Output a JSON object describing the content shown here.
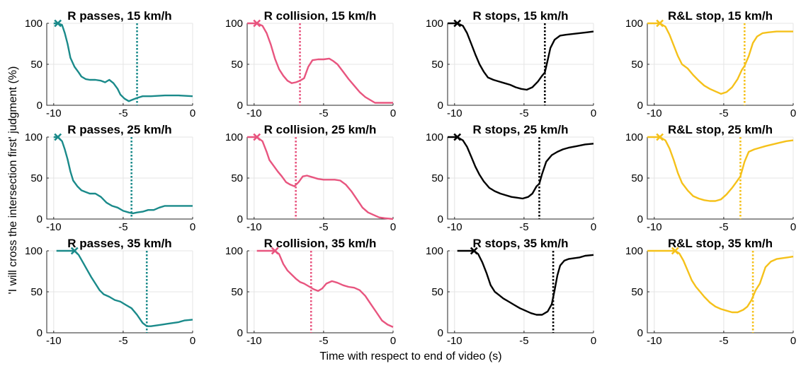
{
  "figure": {
    "ylabel": "'I will cross the intersection first' judgment (%)",
    "xlabel": "Time with respect to end of video (s)"
  },
  "chart_data": [
    {
      "type": "line",
      "title": "R passes, 15 km/h",
      "color": "#1a8a8a",
      "xlim": [
        -10.5,
        0
      ],
      "ylim": [
        0,
        100
      ],
      "xticks": [
        -10,
        -5,
        0
      ],
      "yticks": [
        0,
        50,
        100
      ],
      "grid": true,
      "start_marker": {
        "x": -9.7,
        "y": 100
      },
      "vline": -4.0,
      "x": [
        -10,
        -9.7,
        -9.4,
        -9.2,
        -9.0,
        -8.8,
        -8.5,
        -8.2,
        -8.0,
        -7.7,
        -7.4,
        -7.0,
        -6.6,
        -6.3,
        -6.0,
        -5.7,
        -5.4,
        -5.2,
        -4.9,
        -4.6,
        -4.3,
        -4.0,
        -3.6,
        -3.0,
        -2.0,
        -1.0,
        0
      ],
      "y": [
        100,
        100,
        98,
        88,
        75,
        58,
        47,
        40,
        35,
        32,
        31,
        31,
        30,
        28,
        31,
        27,
        20,
        13,
        8,
        5,
        7,
        9,
        11,
        11,
        12,
        12,
        11
      ]
    },
    {
      "type": "line",
      "title": "R collision, 15 km/h",
      "color": "#e8557f",
      "xlim": [
        -10.5,
        0
      ],
      "ylim": [
        0,
        100
      ],
      "xticks": [
        -10,
        -5,
        0
      ],
      "yticks": [
        0,
        50,
        100
      ],
      "grid": true,
      "start_marker": {
        "x": -9.8,
        "y": 100
      },
      "vline": -6.7,
      "x": [
        -10.5,
        -9.8,
        -9.4,
        -9.1,
        -8.8,
        -8.5,
        -8.2,
        -7.9,
        -7.6,
        -7.3,
        -7.0,
        -6.7,
        -6.4,
        -6.1,
        -5.8,
        -5.4,
        -5.0,
        -4.6,
        -4.3,
        -4.0,
        -3.6,
        -3.2,
        -2.8,
        -2.4,
        -2.0,
        -1.6,
        -1.3,
        -1.0,
        0
      ],
      "y": [
        100,
        100,
        97,
        88,
        74,
        57,
        44,
        36,
        30,
        27,
        28,
        30,
        33,
        47,
        55,
        56,
        56,
        57,
        54,
        50,
        41,
        32,
        24,
        16,
        10,
        6,
        3,
        3,
        3
      ]
    },
    {
      "type": "line",
      "title": "R stops, 15 km/h",
      "color": "#000000",
      "xlim": [
        -10.5,
        0
      ],
      "ylim": [
        0,
        100
      ],
      "xticks": [
        -10,
        -5,
        0
      ],
      "yticks": [
        0,
        50,
        100
      ],
      "grid": true,
      "start_marker": {
        "x": -9.8,
        "y": 100
      },
      "vline": -3.5,
      "x": [
        -10.5,
        -9.8,
        -9.4,
        -9.1,
        -8.8,
        -8.5,
        -8.2,
        -7.9,
        -7.6,
        -7.2,
        -6.8,
        -6.4,
        -6.0,
        -5.6,
        -5.2,
        -4.8,
        -4.4,
        -4.0,
        -3.7,
        -3.5,
        -3.3,
        -3.1,
        -2.8,
        -2.4,
        -2.0,
        -1.5,
        -1.0,
        -0.5,
        0
      ],
      "y": [
        100,
        100,
        97,
        88,
        75,
        62,
        50,
        41,
        34,
        31,
        29,
        27,
        25,
        22,
        20,
        19,
        22,
        29,
        36,
        40,
        55,
        70,
        80,
        85,
        86,
        87,
        88,
        89,
        90
      ]
    },
    {
      "type": "line",
      "title": "R&L stop, 15 km/h",
      "color": "#f5c11a",
      "xlim": [
        -10.5,
        0
      ],
      "ylim": [
        0,
        100
      ],
      "xticks": [
        -10,
        -5,
        0
      ],
      "yticks": [
        0,
        50,
        100
      ],
      "grid": true,
      "start_marker": {
        "x": -9.6,
        "y": 100
      },
      "vline": -3.5,
      "x": [
        -10.5,
        -9.6,
        -9.2,
        -8.9,
        -8.6,
        -8.3,
        -8.0,
        -7.6,
        -7.2,
        -6.8,
        -6.4,
        -6.0,
        -5.6,
        -5.2,
        -4.8,
        -4.4,
        -4.0,
        -3.7,
        -3.5,
        -3.2,
        -2.9,
        -2.6,
        -2.2,
        -1.8,
        -1.2,
        -0.6,
        0
      ],
      "y": [
        100,
        100,
        96,
        86,
        73,
        60,
        50,
        45,
        37,
        30,
        24,
        20,
        17,
        14,
        16,
        22,
        32,
        43,
        48,
        60,
        76,
        84,
        88,
        89,
        90,
        90,
        90
      ]
    },
    {
      "type": "line",
      "title": "R passes, 25 km/h",
      "color": "#1a8a8a",
      "xlim": [
        -10.5,
        0
      ],
      "ylim": [
        0,
        100
      ],
      "xticks": [
        -10,
        -5,
        0
      ],
      "yticks": [
        0,
        50,
        100
      ],
      "grid": true,
      "start_marker": {
        "x": -9.7,
        "y": 100
      },
      "vline": -4.4,
      "x": [
        -10,
        -9.7,
        -9.4,
        -9.2,
        -9.0,
        -8.8,
        -8.6,
        -8.3,
        -8.0,
        -7.7,
        -7.4,
        -7.0,
        -6.6,
        -6.2,
        -5.8,
        -5.4,
        -5.0,
        -4.6,
        -4.3,
        -4.0,
        -3.6,
        -3.2,
        -2.8,
        -2.4,
        -2.0,
        -1.4,
        -0.8,
        0
      ],
      "y": [
        100,
        100,
        95,
        85,
        73,
        58,
        47,
        40,
        35,
        33,
        31,
        31,
        27,
        20,
        16,
        14,
        10,
        8,
        7,
        8,
        9,
        11,
        11,
        14,
        16,
        16,
        16,
        16
      ]
    },
    {
      "type": "line",
      "title": "R collision, 25 km/h",
      "color": "#e8557f",
      "xlim": [
        -10.5,
        0
      ],
      "ylim": [
        0,
        100
      ],
      "xticks": [
        -10,
        -5,
        0
      ],
      "yticks": [
        0,
        50,
        100
      ],
      "grid": true,
      "start_marker": {
        "x": -9.8,
        "y": 100
      },
      "vline": -7.0,
      "x": [
        -10.5,
        -9.8,
        -9.4,
        -9.1,
        -8.9,
        -8.6,
        -8.3,
        -8.0,
        -7.7,
        -7.4,
        -7.1,
        -6.8,
        -6.5,
        -6.2,
        -5.8,
        -5.4,
        -5.0,
        -4.6,
        -4.2,
        -3.8,
        -3.4,
        -3.0,
        -2.6,
        -2.2,
        -1.8,
        -1.4,
        -1.0,
        -0.6,
        0
      ],
      "y": [
        100,
        100,
        95,
        82,
        72,
        65,
        58,
        52,
        45,
        42,
        40,
        45,
        52,
        53,
        51,
        49,
        48,
        48,
        48,
        47,
        42,
        34,
        24,
        14,
        8,
        5,
        2,
        1,
        0
      ]
    },
    {
      "type": "line",
      "title": "R stops, 25 km/h",
      "color": "#000000",
      "xlim": [
        -10.5,
        0
      ],
      "ylim": [
        0,
        100
      ],
      "xticks": [
        -10,
        -5,
        0
      ],
      "yticks": [
        0,
        50,
        100
      ],
      "grid": true,
      "start_marker": {
        "x": -9.8,
        "y": 100
      },
      "vline": -3.9,
      "x": [
        -10.5,
        -9.8,
        -9.4,
        -9.1,
        -8.8,
        -8.5,
        -8.2,
        -7.9,
        -7.5,
        -7.1,
        -6.7,
        -6.3,
        -5.9,
        -5.5,
        -5.1,
        -4.7,
        -4.4,
        -4.1,
        -3.9,
        -3.7,
        -3.4,
        -3.0,
        -2.6,
        -2.2,
        -1.8,
        -1.2,
        -0.6,
        0
      ],
      "y": [
        100,
        100,
        96,
        88,
        76,
        64,
        54,
        46,
        38,
        34,
        31,
        29,
        27,
        26,
        25,
        27,
        31,
        40,
        43,
        55,
        70,
        78,
        82,
        85,
        87,
        89,
        91,
        92
      ]
    },
    {
      "type": "line",
      "title": "R&L stop, 25 km/h",
      "color": "#f5c11a",
      "xlim": [
        -10.5,
        0
      ],
      "ylim": [
        0,
        100
      ],
      "xticks": [
        -10,
        -5,
        0
      ],
      "yticks": [
        0,
        50,
        100
      ],
      "grid": true,
      "start_marker": {
        "x": -9.6,
        "y": 100
      },
      "vline": -3.8,
      "x": [
        -10.5,
        -9.6,
        -9.2,
        -8.9,
        -8.6,
        -8.3,
        -8.0,
        -7.6,
        -7.2,
        -6.8,
        -6.4,
        -6.0,
        -5.6,
        -5.2,
        -4.8,
        -4.4,
        -4.1,
        -3.8,
        -3.5,
        -3.2,
        -2.8,
        -2.4,
        -2.0,
        -1.5,
        -1.0,
        -0.5,
        0
      ],
      "y": [
        100,
        100,
        96,
        86,
        72,
        56,
        44,
        35,
        28,
        25,
        23,
        22,
        22,
        24,
        30,
        38,
        45,
        52,
        70,
        82,
        85,
        87,
        89,
        91,
        93,
        95,
        96
      ]
    },
    {
      "type": "line",
      "title": "R passes, 35 km/h",
      "color": "#1a8a8a",
      "xlim": [
        -10.5,
        0
      ],
      "ylim": [
        0,
        100
      ],
      "xticks": [
        -10,
        -5,
        0
      ],
      "yticks": [
        0,
        50,
        100
      ],
      "grid": true,
      "start_marker": {
        "x": -8.5,
        "y": 100
      },
      "vline": -3.3,
      "x": [
        -9.8,
        -8.5,
        -8.2,
        -7.9,
        -7.6,
        -7.3,
        -7.0,
        -6.7,
        -6.4,
        -6.0,
        -5.6,
        -5.2,
        -4.8,
        -4.4,
        -4.0,
        -3.6,
        -3.3,
        -3.0,
        -2.6,
        -2.2,
        -1.8,
        -1.4,
        -1.0,
        -0.6,
        0
      ],
      "y": [
        100,
        100,
        95,
        86,
        77,
        68,
        60,
        52,
        47,
        44,
        40,
        38,
        34,
        30,
        22,
        12,
        8,
        8,
        9,
        10,
        11,
        12,
        13,
        15,
        16
      ]
    },
    {
      "type": "line",
      "title": "R collision, 35 km/h",
      "color": "#e8557f",
      "xlim": [
        -10.5,
        0
      ],
      "ylim": [
        0,
        100
      ],
      "xticks": [
        -10,
        -5,
        0
      ],
      "yticks": [
        0,
        50,
        100
      ],
      "grid": true,
      "start_marker": {
        "x": -8.5,
        "y": 100
      },
      "vline": -5.9,
      "x": [
        -9.8,
        -8.5,
        -8.2,
        -7.9,
        -7.6,
        -7.3,
        -7.0,
        -6.7,
        -6.4,
        -6.0,
        -5.7,
        -5.4,
        -5.1,
        -4.8,
        -4.4,
        -4.0,
        -3.6,
        -3.2,
        -2.8,
        -2.4,
        -2.0,
        -1.6,
        -1.2,
        -0.8,
        -0.4,
        0
      ],
      "y": [
        100,
        100,
        96,
        84,
        76,
        71,
        66,
        62,
        60,
        56,
        53,
        51,
        54,
        60,
        63,
        61,
        58,
        56,
        55,
        52,
        45,
        35,
        25,
        15,
        10,
        7
      ]
    },
    {
      "type": "line",
      "title": "R stops, 35 km/h",
      "color": "#000000",
      "xlim": [
        -10.5,
        0
      ],
      "ylim": [
        0,
        100
      ],
      "xticks": [
        -10,
        -5,
        0
      ],
      "yticks": [
        0,
        50,
        100
      ],
      "grid": true,
      "start_marker": {
        "x": -8.6,
        "y": 100
      },
      "vline": -2.9,
      "x": [
        -9.8,
        -8.6,
        -8.3,
        -8.0,
        -7.7,
        -7.4,
        -7.1,
        -6.8,
        -6.5,
        -6.1,
        -5.7,
        -5.3,
        -4.9,
        -4.5,
        -4.1,
        -3.7,
        -3.3,
        -3.0,
        -2.8,
        -2.6,
        -2.4,
        -2.1,
        -1.8,
        -1.4,
        -1.0,
        -0.6,
        0
      ],
      "y": [
        100,
        100,
        96,
        86,
        73,
        58,
        50,
        46,
        42,
        38,
        34,
        30,
        27,
        24,
        22,
        22,
        26,
        35,
        52,
        70,
        82,
        88,
        90,
        91,
        92,
        94,
        95
      ]
    },
    {
      "type": "line",
      "title": "R&L stop, 35 km/h",
      "color": "#f5c11a",
      "xlim": [
        -10.5,
        0
      ],
      "ylim": [
        0,
        100
      ],
      "xticks": [
        -10,
        -5,
        0
      ],
      "yticks": [
        0,
        50,
        100
      ],
      "grid": true,
      "start_marker": {
        "x": -8.5,
        "y": 100
      },
      "vline": -2.9,
      "x": [
        -10.5,
        -8.5,
        -8.2,
        -7.9,
        -7.6,
        -7.3,
        -7.0,
        -6.7,
        -6.4,
        -6.0,
        -5.6,
        -5.2,
        -4.8,
        -4.4,
        -4.0,
        -3.6,
        -3.3,
        -3.0,
        -2.7,
        -2.4,
        -2.0,
        -1.6,
        -1.2,
        -0.8,
        -0.4,
        0
      ],
      "y": [
        100,
        100,
        97,
        88,
        76,
        64,
        56,
        50,
        44,
        37,
        32,
        29,
        27,
        25,
        25,
        28,
        32,
        40,
        52,
        60,
        80,
        87,
        90,
        91,
        92,
        93
      ]
    }
  ]
}
